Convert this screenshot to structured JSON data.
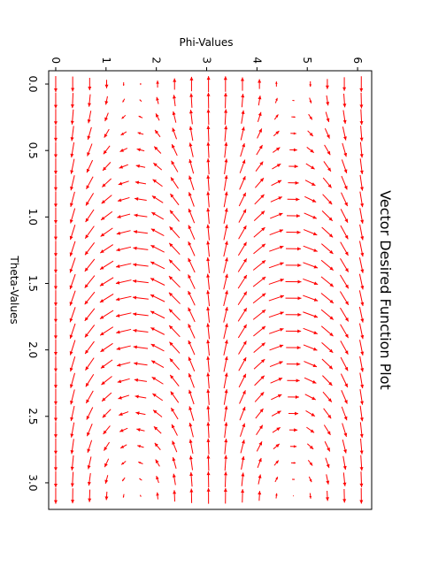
{
  "chart_data": {
    "type": "quiver",
    "title": "Vector Desired Function Plot",
    "xlabel": "Phi-Values",
    "ylabel": "Theta-Values",
    "x_ticks": [
      "0",
      "1",
      "2",
      "3",
      "4",
      "5",
      "6"
    ],
    "x_tick_values": [
      0,
      1,
      2,
      3,
      4,
      5,
      6
    ],
    "y_ticks": [
      "0.0",
      "0.5",
      "1.0",
      "1.5",
      "2.0",
      "2.5",
      "3.0"
    ],
    "y_tick_values": [
      0.0,
      0.5,
      1.0,
      1.5,
      2.0,
      2.5,
      3.0
    ],
    "xlim": [
      -0.14,
      6.28
    ],
    "ylim": [
      -0.1,
      3.2
    ],
    "rotated_90": true,
    "arrow_color": "#ff0000",
    "grid": false,
    "field": {
      "phi_start": 0,
      "phi_end": 6.0737,
      "phi_count": 19,
      "theta_start": 0,
      "theta_end": 3.0981,
      "theta_count": 26,
      "u": "-sin(phi)*sin(theta)",
      "v": "cos(phi)"
    }
  }
}
